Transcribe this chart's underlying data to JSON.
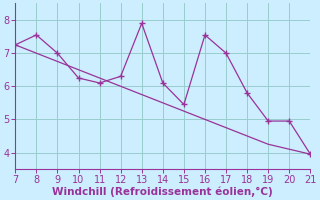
{
  "x": [
    7,
    8,
    9,
    10,
    11,
    12,
    13,
    14,
    15,
    16,
    17,
    18,
    19,
    20,
    21
  ],
  "y": [
    7.25,
    7.55,
    7.0,
    6.25,
    6.1,
    6.3,
    7.9,
    6.1,
    5.45,
    7.55,
    7.0,
    5.8,
    4.95,
    4.95,
    3.95
  ],
  "trend_x": [
    7,
    8,
    9,
    10,
    11,
    12,
    13,
    14,
    15,
    16,
    17,
    18,
    19,
    20,
    21
  ],
  "trend_y": [
    7.25,
    7.0,
    6.75,
    6.5,
    6.25,
    6.0,
    5.75,
    5.5,
    5.25,
    5.0,
    4.75,
    4.5,
    4.25,
    4.1,
    3.95
  ],
  "line_color": "#993399",
  "background_color": "#cceeff",
  "grid_color": "#99cccc",
  "xlabel": "Windchill (Refroidissement éolien,°C)",
  "xlim": [
    7,
    21
  ],
  "ylim": [
    3.5,
    8.5
  ],
  "xticks": [
    7,
    8,
    9,
    10,
    11,
    12,
    13,
    14,
    15,
    16,
    17,
    18,
    19,
    20,
    21
  ],
  "yticks": [
    4,
    5,
    6,
    7,
    8
  ],
  "tick_color": "#993399",
  "xlabel_color": "#993399",
  "label_fontsize": 7.5,
  "tick_fontsize": 7
}
